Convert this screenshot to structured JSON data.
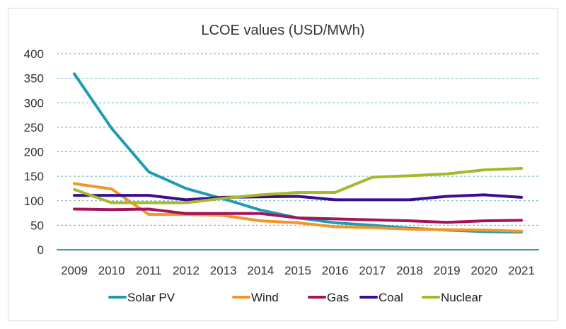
{
  "chart_data": {
    "type": "line",
    "title": "LCOE values (USD/MWh)",
    "xlabel": "",
    "ylabel": "",
    "ylim": [
      0,
      400
    ],
    "yticks": [
      0,
      50,
      100,
      150,
      200,
      250,
      300,
      350,
      400
    ],
    "grid": "horizontal-dotted",
    "legend_position": "bottom",
    "x": [
      "2009",
      "2010",
      "2011",
      "2012",
      "2013",
      "2014",
      "2015",
      "2016",
      "2017",
      "2018",
      "2019",
      "2020",
      "2021"
    ],
    "series": [
      {
        "name": "Solar PV",
        "color": "#1f9bb3",
        "values": [
          359,
          248,
          159,
          125,
          104,
          81,
          65,
          55,
          50,
          44,
          40,
          37,
          36
        ]
      },
      {
        "name": "Wind",
        "color": "#f0962a",
        "values": [
          135,
          124,
          72,
          72,
          70,
          59,
          55,
          47,
          45,
          42,
          41,
          40,
          38
        ]
      },
      {
        "name": "Gas",
        "color": "#a3145a",
        "values": [
          83,
          82,
          83,
          74,
          74,
          74,
          65,
          63,
          61,
          59,
          56,
          59,
          60
        ]
      },
      {
        "name": "Coal",
        "color": "#3c0d91",
        "values": [
          111,
          111,
          111,
          102,
          107,
          108,
          109,
          102,
          102,
          102,
          109,
          112,
          107
        ]
      },
      {
        "name": "Nuclear",
        "color": "#a7b82a",
        "values": [
          123,
          96,
          96,
          96,
          105,
          112,
          117,
          117,
          148,
          151,
          155,
          163,
          166
        ]
      }
    ]
  }
}
